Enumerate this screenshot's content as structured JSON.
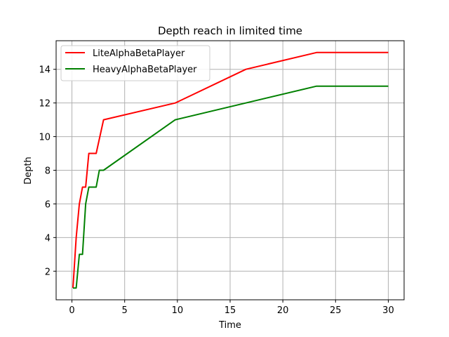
{
  "chart_data": {
    "type": "line",
    "title": "Depth reach in limited time",
    "xlabel": "Time",
    "ylabel": "Depth",
    "xlim": [
      -1.5,
      31.5
    ],
    "ylim": [
      0.3,
      15.7
    ],
    "xticks": [
      0,
      5,
      10,
      15,
      20,
      25,
      30
    ],
    "yticks": [
      2,
      4,
      6,
      8,
      10,
      12,
      14
    ],
    "grid": true,
    "legend_position": "top-left",
    "series": [
      {
        "name": "LiteAlphaBetaPlayer",
        "color": "#ff0000",
        "x": [
          0.1,
          0.4,
          0.7,
          1.0,
          1.3,
          1.6,
          2.3,
          3.0,
          9.8,
          16.5,
          23.2,
          30.0
        ],
        "y": [
          1,
          4,
          6,
          7,
          7,
          9,
          9,
          11,
          12,
          14,
          15,
          15
        ]
      },
      {
        "name": "HeavyAlphaBetaPlayer",
        "color": "#008000",
        "x": [
          0.1,
          0.4,
          0.7,
          1.0,
          1.3,
          1.6,
          2.3,
          2.6,
          3.0,
          9.8,
          23.2,
          30.0
        ],
        "y": [
          1,
          1,
          3,
          3,
          6,
          7,
          7,
          8,
          8,
          11,
          13,
          13
        ]
      }
    ]
  }
}
